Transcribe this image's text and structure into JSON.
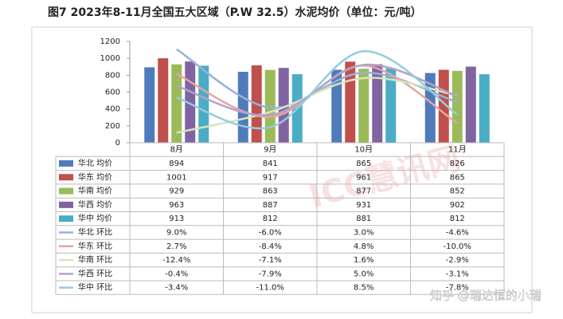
{
  "chart_data": {
    "type": "bar",
    "title": "图7 2023年8-11月全国五大区域（P.W 32.5）水泥均价（单位：元/吨）",
    "categories": [
      "8月",
      "9月",
      "10月",
      "11月"
    ],
    "ylim": [
      0,
      1200
    ],
    "yticks": [
      0,
      200,
      400,
      600,
      800,
      1000,
      1200
    ],
    "y2lim": [
      -15,
      11
    ],
    "grid": false,
    "series": [
      {
        "name": "华北 均价",
        "type": "bar",
        "color": "#4f7bbd",
        "values": [
          894,
          841,
          865,
          826
        ]
      },
      {
        "name": "华东 均价",
        "type": "bar",
        "color": "#c0504d",
        "values": [
          1001,
          917,
          961,
          865
        ]
      },
      {
        "name": "华南 均价",
        "type": "bar",
        "color": "#9bbb59",
        "values": [
          929,
          863,
          877,
          852
        ]
      },
      {
        "name": "华西 均价",
        "type": "bar",
        "color": "#8064a2",
        "values": [
          963,
          887,
          931,
          902
        ]
      },
      {
        "name": "华中 均价",
        "type": "bar",
        "color": "#4bacc6",
        "values": [
          913,
          812,
          881,
          812
        ]
      },
      {
        "name": "华北 环比",
        "type": "line",
        "axis": "y2",
        "color": "#95b3d7",
        "values": [
          9.0,
          -6.0,
          3.0,
          -4.6
        ],
        "value_labels": [
          "9.0%",
          "-6.0%",
          "3.0%",
          "-4.6%"
        ]
      },
      {
        "name": "华东 环比",
        "type": "line",
        "axis": "y2",
        "color": "#e6a5a3",
        "values": [
          2.7,
          -8.4,
          4.8,
          -10.0
        ],
        "value_labels": [
          "2.7%",
          "-8.4%",
          "4.8%",
          "-10.0%"
        ]
      },
      {
        "name": "华南 环比",
        "type": "line",
        "axis": "y2",
        "color": "#d7e4bd",
        "values": [
          -12.4,
          -7.1,
          1.6,
          -2.9
        ],
        "value_labels": [
          "-12.4%",
          "-7.1%",
          "1.6%",
          "-2.9%"
        ]
      },
      {
        "name": "华西 环比",
        "type": "line",
        "axis": "y2",
        "color": "#b3a2c7",
        "values": [
          -0.4,
          -7.9,
          5.0,
          -3.1
        ],
        "value_labels": [
          "-0.4%",
          "-7.9%",
          "5.0%",
          "-3.1%"
        ]
      },
      {
        "name": "华中 环比",
        "type": "line",
        "axis": "y2",
        "color": "#93cddd",
        "values": [
          -3.4,
          -11.0,
          8.5,
          -7.8
        ],
        "value_labels": [
          "-3.4%",
          "-11.0%",
          "8.5%",
          "-7.8%"
        ]
      }
    ]
  },
  "watermark": "ICC慧讯网",
  "credit": "知乎 @瑞达恒的小瑞"
}
